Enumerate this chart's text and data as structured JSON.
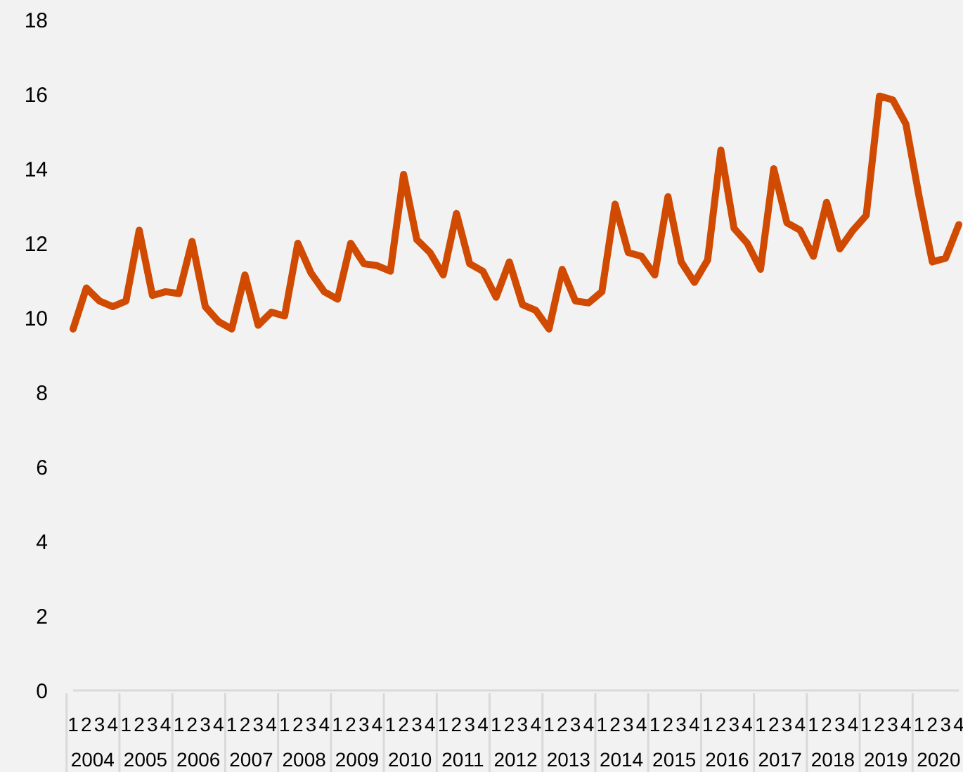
{
  "chart_data": {
    "type": "line",
    "categories": [
      "1",
      "2",
      "3",
      "4",
      "1",
      "2",
      "3",
      "4",
      "1",
      "2",
      "3",
      "4",
      "1",
      "2",
      "3",
      "4",
      "1",
      "2",
      "3",
      "4",
      "1",
      "2",
      "3",
      "4",
      "1",
      "2",
      "3",
      "4",
      "1",
      "2",
      "3",
      "4",
      "1",
      "2",
      "3",
      "4",
      "1",
      "2",
      "3",
      "4",
      "1",
      "2",
      "3",
      "4",
      "1",
      "2",
      "3",
      "4",
      "1",
      "2",
      "3",
      "4",
      "1",
      "2",
      "3",
      "4",
      "1",
      "2",
      "3",
      "4",
      "1",
      "2",
      "3",
      "4",
      "1",
      "2",
      "3",
      "4"
    ],
    "annotations": [
      "2004",
      "2005",
      "2006",
      "2007",
      "2008",
      "2009",
      "2010",
      "2011",
      "2012",
      "2013",
      "2014",
      "2015",
      "2016",
      "2017",
      "2018",
      "2019",
      "2020"
    ],
    "series": [
      {
        "color": "#d04a02",
        "values": [
          9.7,
          10.8,
          10.45,
          10.3,
          10.45,
          12.35,
          10.6,
          10.7,
          10.65,
          12.05,
          10.3,
          9.9,
          9.7,
          11.15,
          9.8,
          10.15,
          10.05,
          12.0,
          11.2,
          10.7,
          10.5,
          12.0,
          11.45,
          11.4,
          11.25,
          13.85,
          12.1,
          11.75,
          11.15,
          12.8,
          11.45,
          11.25,
          10.55,
          11.5,
          10.35,
          10.2,
          9.7,
          11.3,
          10.45,
          10.4,
          10.7,
          13.05,
          11.75,
          11.65,
          11.15,
          13.25,
          11.5,
          10.95,
          11.55,
          14.5,
          12.4,
          12.0,
          11.3,
          14.0,
          12.55,
          12.35,
          11.65,
          13.1,
          11.85,
          12.35,
          12.75,
          15.95,
          15.85,
          15.2,
          13.25,
          11.5,
          11.6,
          12.5
        ]
      }
    ],
    "ylim": [
      0,
      18
    ],
    "yticks": [
      0,
      2,
      4,
      6,
      8,
      10,
      12,
      14,
      16,
      18
    ],
    "grid": false,
    "legend": false,
    "marker": "none",
    "line_style": "solid"
  }
}
